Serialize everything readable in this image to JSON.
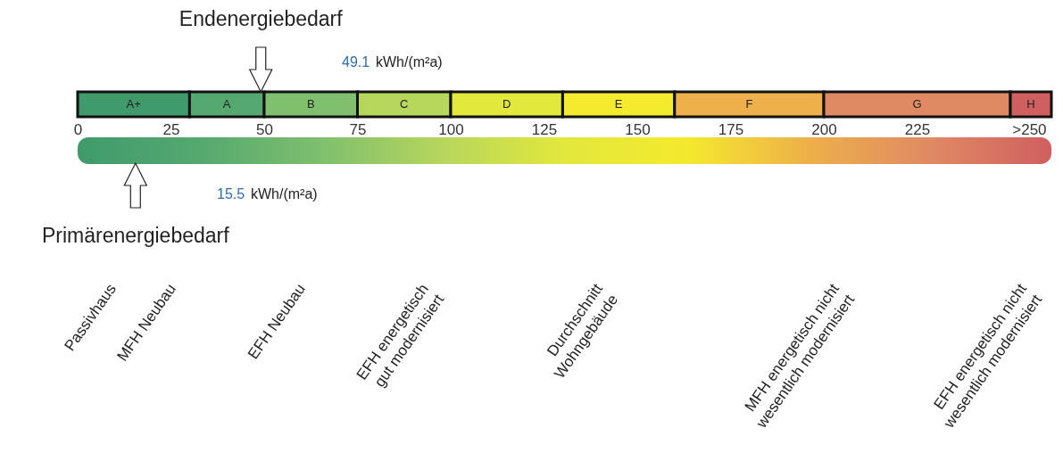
{
  "chart_data": {
    "type": "bar",
    "orientation": "horizontal",
    "stacked": true,
    "categories": [
      null
    ],
    "xlim": [
      0,
      261
    ],
    "xticks": [
      0,
      25,
      50,
      75,
      100,
      125,
      150,
      175,
      200,
      225,
      {
        "value": 255,
        "label": ">250"
      }
    ],
    "series": [
      {
        "name": "A+",
        "color": "#3f9b6c",
        "values": [
          30
        ]
      },
      {
        "name": "A",
        "color": "#55a870",
        "values": [
          20
        ]
      },
      {
        "name": "B",
        "color": "#7fbf6e",
        "values": [
          25
        ]
      },
      {
        "name": "C",
        "color": "#b7d65c",
        "values": [
          25
        ]
      },
      {
        "name": "D",
        "color": "#e3e83c",
        "values": [
          30
        ]
      },
      {
        "name": "E",
        "color": "#f4ea2e",
        "values": [
          30
        ]
      },
      {
        "name": "F",
        "color": "#eeb04a",
        "values": [
          40
        ]
      },
      {
        "name": "G",
        "color": "#e08a64",
        "values": [
          50
        ]
      },
      {
        "name": "H",
        "color": "#d05f5f",
        "values": [
          11
        ]
      }
    ],
    "ref_lines": [
      {
        "axis": "x",
        "value": 49.1,
        "label": "Endenergiebedarf"
      },
      {
        "axis": "x",
        "value": 15.5,
        "label": "Primärenergiebedarf"
      }
    ],
    "annotations": [
      "49.1 kWh/(m²a)",
      "15.5 kWh/(m²a)",
      "Passivhaus",
      "MFH Neubau",
      "EFH Neubau",
      "EFH energetisch\ngut modernisiert",
      "Durchschnitt\nWohngebäude",
      "MFH energetisch nicht\nwesentlich modernisiert",
      "EFH energetisch nicht\nwesentlich modernisiert"
    ]
  }
}
